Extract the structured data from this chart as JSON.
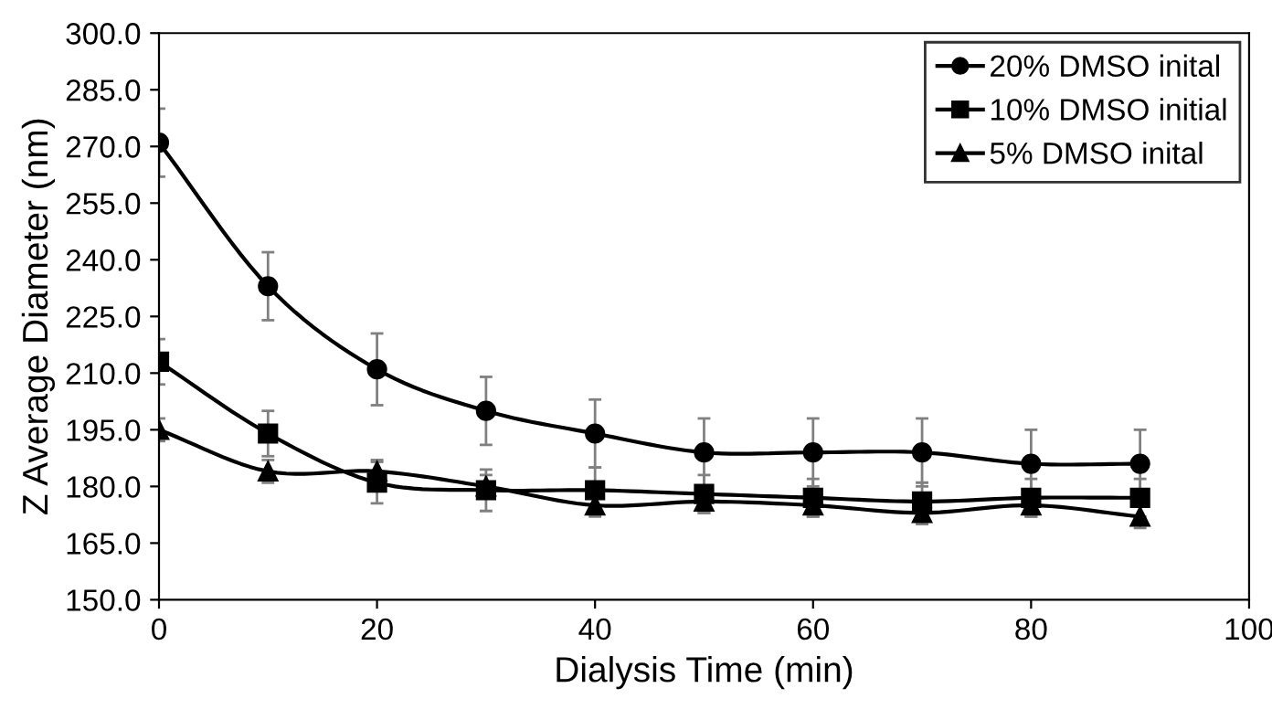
{
  "chart_data": {
    "type": "line",
    "xlabel": "Dialysis Time (min)",
    "ylabel": "Z Average Diameter (nm)",
    "x": [
      0,
      10,
      20,
      30,
      40,
      50,
      60,
      70,
      80,
      90
    ],
    "series": [
      {
        "name": "20% DMSO inital",
        "color": "#000000",
        "marker": "circle",
        "values": [
          271,
          233,
          211,
          200,
          194,
          189,
          189,
          189,
          186,
          186
        ],
        "errors": [
          9,
          9,
          9.5,
          9,
          9,
          9,
          9,
          9,
          9,
          9
        ]
      },
      {
        "name": "10% DMSO initial",
        "color": "#000000",
        "marker": "square",
        "values": [
          213,
          194,
          181,
          179,
          179,
          178,
          177,
          176,
          177,
          177
        ],
        "errors": [
          6,
          6,
          5.5,
          5.5,
          6,
          5,
          5,
          5,
          5,
          5
        ]
      },
      {
        "name": "5% DMSO inital",
        "color": "#000000",
        "marker": "triangle",
        "values": [
          195,
          184,
          184,
          180,
          175,
          176,
          175,
          173,
          175,
          172
        ],
        "errors": [
          3,
          3,
          3,
          3,
          3,
          3,
          3,
          3,
          3,
          3
        ]
      }
    ],
    "xlim": [
      0,
      100
    ],
    "xticks": [
      0,
      20,
      40,
      60,
      80,
      100
    ],
    "ylim": [
      150,
      300
    ],
    "yticks": [
      {
        "value": 150,
        "label": "150.0"
      },
      {
        "value": 165,
        "label": "165.0"
      },
      {
        "value": 180,
        "label": "180.0"
      },
      {
        "value": 195,
        "label": "195.0"
      },
      {
        "value": 210,
        "label": "210.0"
      },
      {
        "value": 225,
        "label": "225.0"
      },
      {
        "value": 240,
        "label": "240.0"
      },
      {
        "value": 255,
        "label": "255.0"
      },
      {
        "value": 270,
        "label": "270.0"
      },
      {
        "value": 285,
        "label": "285.0"
      },
      {
        "value": 300,
        "label": "300.0"
      }
    ],
    "grid": false,
    "legend": "top right",
    "line_style": "solid"
  }
}
